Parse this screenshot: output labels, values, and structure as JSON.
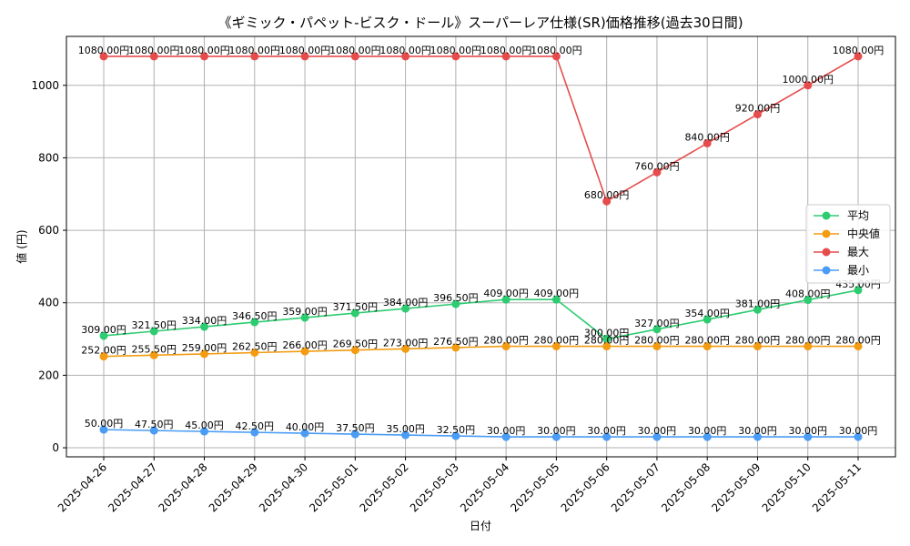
{
  "chart_data": {
    "type": "line",
    "title": "《ギミック・パペット-ビスク・ドール》スーパーレア仕様(SR)価格推移(過去30日間)",
    "xlabel": "日付",
    "ylabel": "値 (円)",
    "ylim": [
      -25,
      1135
    ],
    "yticks": [
      0,
      200,
      400,
      600,
      800,
      1000
    ],
    "grid": true,
    "legend_position": "center-right",
    "categories": [
      "2025-04-26",
      "2025-04-27",
      "2025-04-28",
      "2025-04-29",
      "2025-04-30",
      "2025-05-01",
      "2025-05-02",
      "2025-05-03",
      "2025-05-04",
      "2025-05-05",
      "2025-05-06",
      "2025-05-07",
      "2025-05-08",
      "2025-05-09",
      "2025-05-10",
      "2025-05-11"
    ],
    "series": [
      {
        "name": "平均",
        "color": "#2ecc71",
        "values": [
          309,
          321.5,
          334,
          346.5,
          359,
          371.5,
          384,
          396.5,
          409,
          409,
          300,
          327,
          354,
          381,
          408,
          435
        ],
        "labels": [
          "309.00円",
          "321.50円",
          "334.00円",
          "346.50円",
          "359.00円",
          "371.50円",
          "384.00円",
          "396.50円",
          "409.00円",
          "409.00円",
          "300.00円",
          "327.00円",
          "354.00円",
          "381.00円",
          "408.00円",
          "435.00円"
        ]
      },
      {
        "name": "中央値",
        "color": "#f39c12",
        "values": [
          252,
          255.5,
          259,
          262.5,
          266,
          269.5,
          273,
          276.5,
          280,
          280,
          280,
          280,
          280,
          280,
          280,
          280
        ],
        "labels": [
          "252.00円",
          "255.50円",
          "259.00円",
          "262.50円",
          "266.00円",
          "269.50円",
          "273.00円",
          "276.50円",
          "280.00円",
          "280.00円",
          "280.00円",
          "280.00円",
          "280.00円",
          "280.00円",
          "280.00円",
          "280.00円"
        ]
      },
      {
        "name": "最大",
        "color": "#e74c4c",
        "values": [
          1080,
          1080,
          1080,
          1080,
          1080,
          1080,
          1080,
          1080,
          1080,
          1080,
          680,
          760,
          840,
          920,
          1000,
          1080
        ],
        "labels": [
          "1080.00円",
          "1080.00円",
          "1080.00円",
          "1080.00円",
          "1080.00円",
          "1080.00円",
          "1080.00円",
          "1080.00円",
          "1080.00円",
          "1080.00円",
          "680.00円",
          "760.00円",
          "840.00円",
          "920.00円",
          "1000.00円",
          "1080.00円"
        ]
      },
      {
        "name": "最小",
        "color": "#4a9cf5",
        "values": [
          50,
          47.5,
          45,
          42.5,
          40,
          37.5,
          35,
          32.5,
          30,
          30,
          30,
          30,
          30,
          30,
          30,
          30
        ],
        "labels": [
          "50.00円",
          "47.50円",
          "45.00円",
          "42.50円",
          "40.00円",
          "37.50円",
          "35.00円",
          "32.50円",
          "30.00円",
          "30.00円",
          "30.00円",
          "30.00円",
          "30.00円",
          "30.00円",
          "30.00円",
          "30.00円"
        ]
      }
    ]
  }
}
